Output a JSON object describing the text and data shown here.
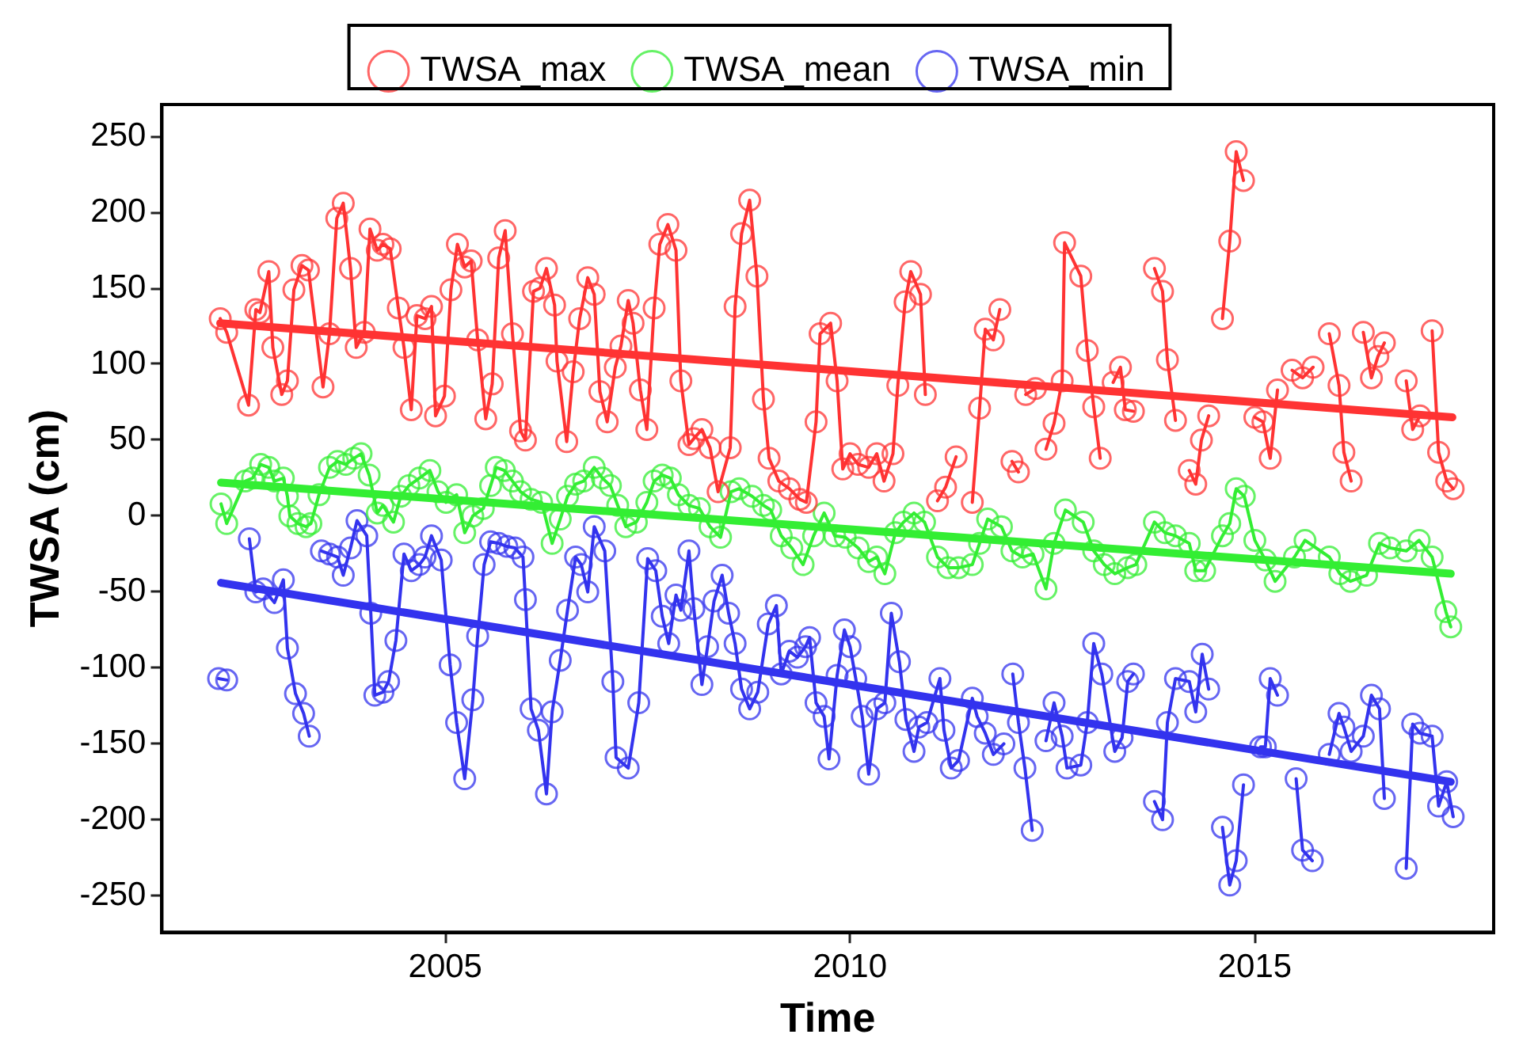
{
  "chart_data": {
    "type": "line",
    "xlabel": "Time",
    "ylabel": "TWSA (cm)",
    "marker": "circle",
    "legend": "top",
    "xlim": [
      2001.5,
      2017.95
    ],
    "ylim": [
      -274,
      271
    ],
    "xticks": [
      2005,
      2010,
      2015
    ],
    "yticks": [
      -250,
      -200,
      -150,
      -100,
      -50,
      0,
      50,
      100,
      150,
      200,
      250
    ],
    "series": [
      {
        "name": "TWSA_max",
        "color": "#ff3333",
        "x": [
          2002.22,
          2002.3,
          2002.57,
          2002.66,
          2002.71,
          2002.82,
          2002.87,
          2002.98,
          2003.05,
          2003.13,
          2003.23,
          2003.31,
          2003.49,
          2003.57,
          2003.66,
          2003.74,
          2003.83,
          2003.9,
          2004.0,
          2004.07,
          2004.16,
          2004.23,
          2004.32,
          2004.42,
          2004.49,
          2004.58,
          2004.65,
          2004.75,
          2004.83,
          2004.88,
          2004.99,
          2005.07,
          2005.15,
          2005.24,
          2005.32,
          2005.4,
          2005.5,
          2005.58,
          2005.66,
          2005.74,
          2005.83,
          2005.93,
          2005.99,
          2006.09,
          2006.17,
          2006.25,
          2006.35,
          2006.38,
          2006.5,
          2006.58,
          2006.66,
          2006.76,
          2006.84,
          2006.91,
          2007.0,
          2007.1,
          2007.17,
          2007.26,
          2007.32,
          2007.41,
          2007.49,
          2007.58,
          2007.65,
          2007.75,
          2007.85,
          2007.91,
          2008.01,
          2008.07,
          2008.17,
          2008.27,
          2008.37,
          2008.52,
          2008.58,
          2008.66,
          2008.76,
          2008.85,
          2008.93,
          2009.0,
          2009.12,
          2009.25,
          2009.38,
          2009.46,
          2009.58,
          2009.63,
          2009.76,
          2009.84,
          2009.91,
          2010.0,
          2010.1,
          2010.23,
          2010.33,
          2010.42,
          2010.53,
          2010.59,
          2010.68,
          2010.75,
          2010.87,
          2010.93,
          2011.0,
          2011.08,
          2011.18,
          2011.31,
          2011.4,
          2011.51,
          2011.6,
          2011.67,
          2011.77,
          2011.85,
          2011.92,
          2012.0,
          2012.08,
          2012.12,
          2012.17,
          2012.29,
          2012.35,
          2012.42,
          2012.52,
          2012.62,
          2012.65,
          2012.85,
          2012.93,
          2013.01,
          2013.09,
          2013.17,
          2013.25,
          2013.34,
          2013.4,
          2013.5,
          2013.6,
          2013.76,
          2013.86,
          2013.92,
          2014.02,
          2014.1,
          2014.19,
          2014.27,
          2014.34,
          2014.43,
          2014.5,
          2014.6,
          2014.69,
          2014.77,
          2014.86,
          2014.93,
          2015.0,
          2015.1,
          2015.19,
          2015.28,
          2015.4,
          2015.46,
          2015.59,
          2015.72,
          2015.8,
          2015.92,
          2016.04,
          2016.1,
          2016.19,
          2016.27,
          2016.34,
          2016.44,
          2016.52,
          2016.6,
          2016.75,
          2016.87,
          2016.95,
          2017.04,
          2017.1,
          2017.19,
          2017.27,
          2017.37,
          2017.45
        ],
        "values": [
          130,
          121,
          73,
          136,
          134,
          161,
          111,
          80,
          89,
          149,
          165,
          162,
          85,
          120,
          196,
          206,
          163,
          111,
          121,
          189,
          175,
          179,
          176,
          137,
          111,
          70,
          132,
          130,
          138,
          66,
          79,
          149,
          179,
          164,
          168,
          116,
          64,
          87,
          170,
          188,
          120,
          56,
          50,
          148,
          150,
          163,
          139,
          102,
          49,
          95,
          130,
          157,
          146,
          82,
          62,
          98,
          112,
          142,
          127,
          83,
          57,
          137,
          179,
          192,
          175,
          89,
          47,
          51,
          57,
          45,
          16,
          45,
          138,
          186,
          208,
          158,
          77,
          38,
          23,
          18,
          11,
          9,
          62,
          120,
          127,
          89,
          31,
          41,
          34,
          32,
          41,
          23,
          41,
          86,
          141,
          161,
          146,
          80,
          null,
          10,
          19,
          39,
          null,
          9,
          71,
          123,
          116,
          136,
          null,
          36,
          29,
          null,
          80,
          84,
          null,
          44,
          61,
          89,
          180,
          158,
          109,
          72,
          38,
          null,
          88,
          98,
          70,
          69,
          null,
          163,
          148,
          103,
          63,
          null,
          30,
          21,
          50,
          66,
          null,
          130,
          181,
          240,
          221,
          null,
          65,
          62,
          38,
          83,
          null,
          96,
          91,
          98,
          null,
          120,
          86,
          42,
          23,
          null,
          121,
          91,
          105,
          114,
          null,
          89,
          57,
          66,
          null,
          122,
          42,
          23,
          18
        ]
      },
      {
        "name": "TWSA_mean",
        "color": "#33ee33",
        "x": [
          2002.23,
          2002.3,
          2002.53,
          2002.62,
          2002.72,
          2002.82,
          2002.89,
          2003.0,
          2003.05,
          2003.08,
          2003.18,
          2003.28,
          2003.34,
          2003.44,
          2003.57,
          2003.67,
          2003.77,
          2003.87,
          2003.96,
          2004.06,
          2004.16,
          2004.23,
          2004.36,
          2004.45,
          2004.55,
          2004.68,
          2004.81,
          2004.91,
          2005.01,
          2005.14,
          2005.24,
          2005.34,
          2005.47,
          2005.56,
          2005.63,
          2005.73,
          2005.83,
          2005.93,
          2006.06,
          2006.19,
          2006.32,
          2006.42,
          2006.51,
          2006.61,
          2006.71,
          2006.84,
          2006.94,
          2007.04,
          2007.13,
          2007.23,
          2007.36,
          2007.49,
          2007.58,
          2007.68,
          2007.78,
          2007.88,
          2008.01,
          2008.14,
          2008.27,
          2008.4,
          2008.53,
          2008.63,
          2008.79,
          2008.93,
          2009.02,
          2009.15,
          2009.28,
          2009.42,
          2009.55,
          2009.68,
          2009.81,
          2009.94,
          2010.1,
          2010.23,
          2010.33,
          2010.43,
          2010.56,
          2010.66,
          2010.79,
          2010.92,
          2011.08,
          2011.21,
          2011.34,
          2011.51,
          2011.6,
          2011.7,
          2011.87,
          2012.0,
          2012.13,
          2012.26,
          2012.42,
          2012.52,
          2012.66,
          2012.88,
          2013.01,
          2013.14,
          2013.27,
          2013.43,
          2013.53,
          2013.76,
          2013.89,
          2014.02,
          2014.19,
          2014.27,
          2014.38,
          2014.6,
          2014.69,
          2014.77,
          2014.87,
          2015.0,
          2015.13,
          2015.25,
          2015.49,
          2015.62,
          2015.92,
          2016.05,
          2016.18,
          2016.38,
          2016.54,
          2016.67,
          2016.87,
          2017.03,
          2017.19,
          2017.36,
          2017.42
        ],
        "values": [
          8,
          -5,
          23,
          25,
          34,
          32,
          23,
          25,
          13,
          0,
          -5,
          -7,
          -5,
          14,
          32,
          36,
          34,
          38,
          41,
          27,
          2,
          7,
          -4,
          13,
          20,
          25,
          30,
          16,
          9,
          14,
          -11,
          0,
          5,
          20,
          32,
          30,
          23,
          16,
          11,
          9,
          -18,
          -2,
          13,
          21,
          23,
          32,
          25,
          20,
          7,
          -7,
          -4,
          9,
          23,
          27,
          25,
          14,
          7,
          5,
          -7,
          -14,
          16,
          18,
          13,
          7,
          4,
          -13,
          -21,
          -32,
          -13,
          2,
          -13,
          -14,
          -21,
          -30,
          -27,
          -38,
          -11,
          -4,
          2,
          -4,
          -27,
          -34,
          -34,
          -32,
          -18,
          -2,
          -7,
          -23,
          -27,
          -25,
          -48,
          -18,
          4,
          -4,
          -23,
          -32,
          -38,
          -34,
          -32,
          -4,
          -11,
          -13,
          -18,
          -36,
          -36,
          -13,
          -5,
          18,
          13,
          -16,
          -29,
          -43,
          -27,
          -16,
          -27,
          -38,
          -43,
          -39,
          -18,
          -21,
          -23,
          -16,
          -27,
          -63,
          -73
        ]
      },
      {
        "name": "TWSA_min",
        "color": "#3333ee",
        "x": [
          2002.2,
          2002.3,
          2002.44,
          2002.58,
          2002.66,
          2002.75,
          2002.89,
          2003.0,
          2003.05,
          2003.15,
          2003.25,
          2003.32,
          2003.4,
          2003.47,
          2003.57,
          2003.67,
          2003.74,
          2003.83,
          2003.91,
          2004.03,
          2004.08,
          2004.13,
          2004.23,
          2004.3,
          2004.39,
          2004.49,
          2004.58,
          2004.68,
          2004.75,
          2004.83,
          2004.95,
          2005.06,
          2005.14,
          2005.24,
          2005.34,
          2005.4,
          2005.48,
          2005.56,
          2005.66,
          2005.76,
          2005.86,
          2005.96,
          2005.99,
          2006.06,
          2006.15,
          2006.25,
          2006.32,
          2006.42,
          2006.51,
          2006.61,
          2006.68,
          2006.76,
          2006.84,
          2006.97,
          2007.07,
          2007.11,
          2007.26,
          2007.39,
          2007.5,
          2007.6,
          2007.68,
          2007.76,
          2007.85,
          2007.91,
          2008.01,
          2008.07,
          2008.17,
          2008.24,
          2008.32,
          2008.42,
          2008.5,
          2008.58,
          2008.66,
          2008.76,
          2008.86,
          2008.99,
          2009.09,
          2009.15,
          2009.25,
          2009.35,
          2009.45,
          2009.5,
          2009.58,
          2009.68,
          2009.74,
          2009.84,
          2009.93,
          2010.0,
          2010.07,
          2010.15,
          2010.23,
          2010.33,
          2010.43,
          2010.51,
          2010.61,
          2010.69,
          2010.79,
          2010.85,
          2010.95,
          2011.11,
          2011.16,
          2011.25,
          2011.34,
          2011.51,
          2011.57,
          2011.67,
          2011.77,
          2011.9,
          2011.96,
          2012.01,
          2012.08,
          2012.16,
          2012.25,
          2012.33,
          2012.42,
          2012.52,
          2012.62,
          2012.68,
          2012.85,
          2012.93,
          2013.01,
          2013.11,
          2013.27,
          2013.36,
          2013.43,
          2013.5,
          2013.6,
          2013.76,
          2013.86,
          2013.92,
          2014.02,
          2014.19,
          2014.27,
          2014.35,
          2014.43,
          2014.5,
          2014.6,
          2014.69,
          2014.77,
          2014.86,
          2014.95,
          2015.07,
          2015.13,
          2015.19,
          2015.28,
          2015.4,
          2015.51,
          2015.59,
          2015.71,
          2015.8,
          2015.92,
          2016.04,
          2016.1,
          2016.19,
          2016.34,
          2016.44,
          2016.54,
          2016.6,
          2016.75,
          2016.87,
          2016.95,
          2017.04,
          2017.19,
          2017.27,
          2017.37,
          2017.45
        ],
        "values": [
          -107,
          -108,
          null,
          -15,
          -50,
          -48,
          -57,
          -42,
          -87,
          -117,
          -130,
          -145,
          null,
          -23,
          -25,
          -27,
          -39,
          -21,
          -3,
          -13,
          -64,
          -118,
          -116,
          -109,
          -82,
          -25,
          -36,
          -32,
          -27,
          -13,
          -29,
          -98,
          -136,
          -173,
          -121,
          -79,
          -32,
          -17,
          -18,
          -20,
          -21,
          -27,
          -55,
          -127,
          -141,
          -183,
          -129,
          -95,
          -62,
          -27,
          -32,
          -50,
          -7,
          -23,
          -109,
          -159,
          -166,
          -123,
          -28,
          -36,
          -66,
          -84,
          -52,
          -62,
          -23,
          -61,
          -111,
          -86,
          -56,
          -39,
          -64,
          -84,
          -114,
          -127,
          -116,
          -71,
          -59,
          -104,
          -89,
          -93,
          -86,
          -80,
          -123,
          -132,
          -160,
          -105,
          -75,
          -86,
          -107,
          -132,
          -170,
          -127,
          -123,
          -64,
          -96,
          -134,
          -155,
          -139,
          -136,
          -107,
          -141,
          -166,
          -161,
          -120,
          -132,
          -143,
          -157,
          -150,
          null,
          -104,
          -136,
          -166,
          -207,
          null,
          -148,
          -123,
          -145,
          -166,
          -164,
          -136,
          -84,
          -104,
          -155,
          -146,
          -109,
          -104,
          null,
          -188,
          -200,
          -136,
          -107,
          -109,
          -129,
          -91,
          -114,
          null,
          -205,
          -243,
          -227,
          -177,
          null,
          -152,
          -152,
          -107,
          -118,
          null,
          -173,
          -220,
          -227,
          null,
          -157,
          -130,
          -139,
          -155,
          -145,
          -118,
          -127,
          -186,
          null,
          -232,
          -137,
          -143,
          -145,
          -191,
          -175,
          -198
        ]
      },
      {
        "color": "#ff3333",
        "marker": "none",
        "x": [
          2002.22,
          2017.44
        ],
        "values": [
          127,
          65
        ]
      },
      {
        "color": "#33ee33",
        "marker": "none",
        "x": [
          2002.23,
          2017.42
        ],
        "values": [
          22,
          -38
        ]
      },
      {
        "color": "#3333ee",
        "marker": "none",
        "x": [
          2002.23,
          2017.42
        ],
        "values": [
          -44,
          -175
        ]
      }
    ]
  }
}
